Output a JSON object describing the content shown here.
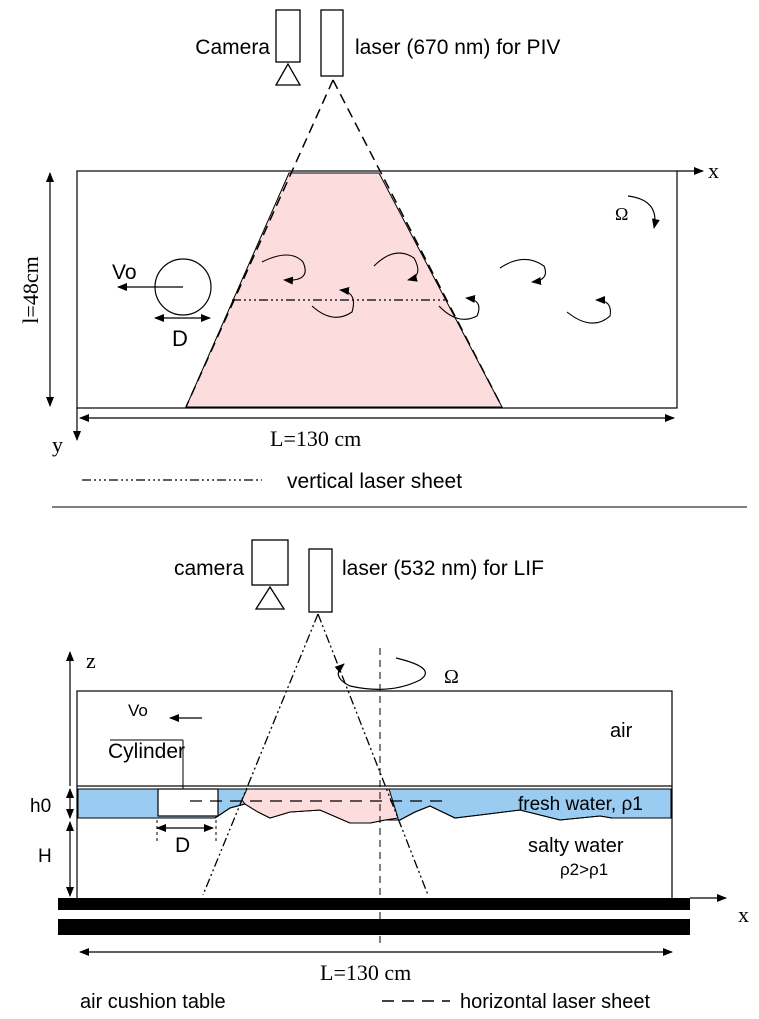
{
  "top": {
    "camera_label": "Camera",
    "laser_label": "laser (670 nm) for PIV",
    "x_axis_label": "x",
    "y_axis_label": "y",
    "omega_label": "Ω",
    "velocity_label": "Vo",
    "diameter_label": "D",
    "depth_label": "l=48cm",
    "length_label": "L=130 cm",
    "legend_label": "vertical laser sheet"
  },
  "bottom": {
    "camera_label": "camera",
    "laser_label": "laser (532 nm) for LIF",
    "z_axis_label": "z",
    "x_axis_label": "x",
    "omega_label": "Ω",
    "velocity_label": "Vo",
    "cylinder_label": "Cylinder",
    "diameter_label": "D",
    "air_label": "air",
    "fresh_water_label": "fresh water, ρ1",
    "salty_water_label": "salty water",
    "density_label": "ρ2>ρ1",
    "h0_label": "h0",
    "H_label": "H",
    "length_label": "L=130 cm",
    "table_label": "air cushion table",
    "legend_label": "horizontal laser sheet"
  },
  "colors": {
    "laser_sheet": "#fcdcdc",
    "fresh_water": "#99ccf0",
    "ink": "#000000"
  }
}
